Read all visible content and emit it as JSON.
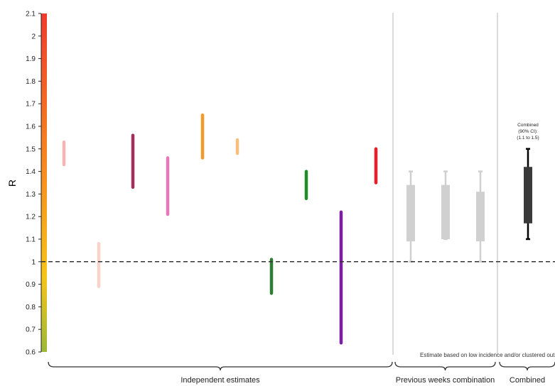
{
  "chart_data": {
    "type": "range",
    "ylabel": "R",
    "ylim": [
      0.6,
      2.1
    ],
    "yticks": [
      "0.6",
      "0.7",
      "0.8",
      "0.9",
      "1",
      "1.1",
      "1.2",
      "1.3",
      "1.4",
      "1.5",
      "1.6",
      "1.7",
      "1.8",
      "1.9",
      "2",
      "2.1"
    ],
    "reference_line": 1.0,
    "groups": [
      {
        "label": "Independent estimates"
      },
      {
        "label": "Previous weeks combination"
      },
      {
        "label": "Combined"
      }
    ],
    "footnote": "Estimate based on low incidence and/or clustered outbreak",
    "independent_estimates": [
      {
        "low": 1.43,
        "high": 1.53,
        "color": "#f5b5b5"
      },
      {
        "low": 0.89,
        "high": 1.08,
        "color": "#f8d2c8"
      },
      {
        "low": 1.33,
        "high": 1.56,
        "color": "#a3305c"
      },
      {
        "low": 1.21,
        "high": 1.46,
        "color": "#e777b8"
      },
      {
        "low": 1.46,
        "high": 1.65,
        "color": "#f59a2a"
      },
      {
        "low": 1.48,
        "high": 1.54,
        "color": "#f7c07a"
      },
      {
        "low": 0.86,
        "high": 1.01,
        "color": "#2e7d32"
      },
      {
        "low": 1.28,
        "high": 1.4,
        "color": "#1e8c27"
      },
      {
        "low": 0.64,
        "high": 1.22,
        "color": "#7a1fa2"
      },
      {
        "low": 1.35,
        "high": 1.5,
        "color": "#ee1c24"
      }
    ],
    "previous_weeks": [
      {
        "low": 1.0,
        "high": 1.4,
        "box_low": 1.09,
        "box_high": 1.34
      },
      {
        "low": 1.1,
        "high": 1.4,
        "box_low": 1.1,
        "box_high": 1.34
      },
      {
        "low": 1.0,
        "high": 1.4,
        "box_low": 1.09,
        "box_high": 1.31
      }
    ],
    "combined": {
      "low": 1.1,
      "high": 1.5,
      "box_low": 1.17,
      "box_high": 1.42
    },
    "combined_annotation": [
      "Combined",
      "(90% CI):",
      "(1.1 to 1.5)"
    ],
    "colors": {
      "previous_weeks": "#d0d0d0",
      "combined": "#3a3a3a",
      "reference_line": "#333333",
      "separator": "#cccccc"
    }
  }
}
